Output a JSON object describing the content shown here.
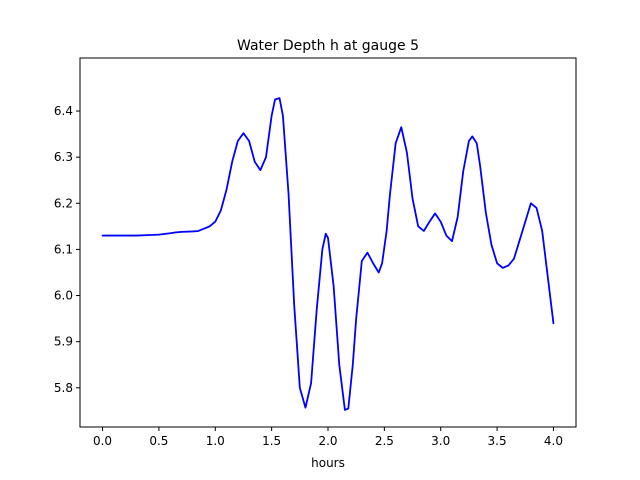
{
  "chart_data": {
    "type": "line",
    "title": "Water Depth h at gauge 5",
    "xlabel": "hours",
    "ylabel": "",
    "xlim": [
      -0.2,
      4.2
    ],
    "ylim": [
      5.715,
      6.515
    ],
    "xticks": [
      0.0,
      0.5,
      1.0,
      1.5,
      2.0,
      2.5,
      3.0,
      3.5,
      4.0
    ],
    "xtick_labels": [
      "0.0",
      "0.5",
      "1.0",
      "1.5",
      "2.0",
      "2.5",
      "3.0",
      "3.5",
      "4.0"
    ],
    "yticks": [
      5.8,
      5.9,
      6.0,
      6.1,
      6.2,
      6.3,
      6.4
    ],
    "ytick_labels": [
      "5.8",
      "5.9",
      "6.0",
      "6.1",
      "6.2",
      "6.3",
      "6.4"
    ],
    "grid": false,
    "color": "#0000ff",
    "series": [
      {
        "x": [
          0.0,
          0.1,
          0.2,
          0.3,
          0.4,
          0.5,
          0.6,
          0.65,
          0.7,
          0.8,
          0.85,
          0.9,
          0.95,
          1.0,
          1.05,
          1.1,
          1.15,
          1.2,
          1.25,
          1.3,
          1.35,
          1.4,
          1.45,
          1.5,
          1.53,
          1.57,
          1.6,
          1.65,
          1.7,
          1.75,
          1.8,
          1.85,
          1.9,
          1.95,
          1.98,
          2.0,
          2.05,
          2.1,
          2.15,
          2.18,
          2.22,
          2.25,
          2.3,
          2.35,
          2.4,
          2.45,
          2.48,
          2.52,
          2.55,
          2.6,
          2.65,
          2.7,
          2.75,
          2.8,
          2.85,
          2.9,
          2.95,
          3.0,
          3.05,
          3.1,
          3.15,
          3.2,
          3.25,
          3.28,
          3.32,
          3.35,
          3.4,
          3.45,
          3.5,
          3.55,
          3.6,
          3.65,
          3.7,
          3.75,
          3.8,
          3.85,
          3.9,
          3.95,
          4.0
        ],
        "y": [
          6.13,
          6.13,
          6.13,
          6.13,
          6.131,
          6.132,
          6.135,
          6.137,
          6.138,
          6.139,
          6.14,
          6.145,
          6.15,
          6.16,
          6.185,
          6.23,
          6.29,
          6.335,
          6.352,
          6.335,
          6.29,
          6.272,
          6.3,
          6.39,
          6.425,
          6.428,
          6.39,
          6.22,
          5.98,
          5.8,
          5.757,
          5.81,
          5.97,
          6.1,
          6.134,
          6.125,
          6.02,
          5.85,
          5.752,
          5.755,
          5.85,
          5.95,
          6.075,
          6.093,
          6.07,
          6.05,
          6.07,
          6.14,
          6.22,
          6.33,
          6.365,
          6.31,
          6.21,
          6.15,
          6.14,
          6.16,
          6.178,
          6.16,
          6.13,
          6.118,
          6.17,
          6.27,
          6.335,
          6.345,
          6.33,
          6.28,
          6.18,
          6.11,
          6.07,
          6.06,
          6.065,
          6.08,
          6.12,
          6.16,
          6.2,
          6.19,
          6.14,
          6.04,
          5.94
        ]
      }
    ]
  }
}
